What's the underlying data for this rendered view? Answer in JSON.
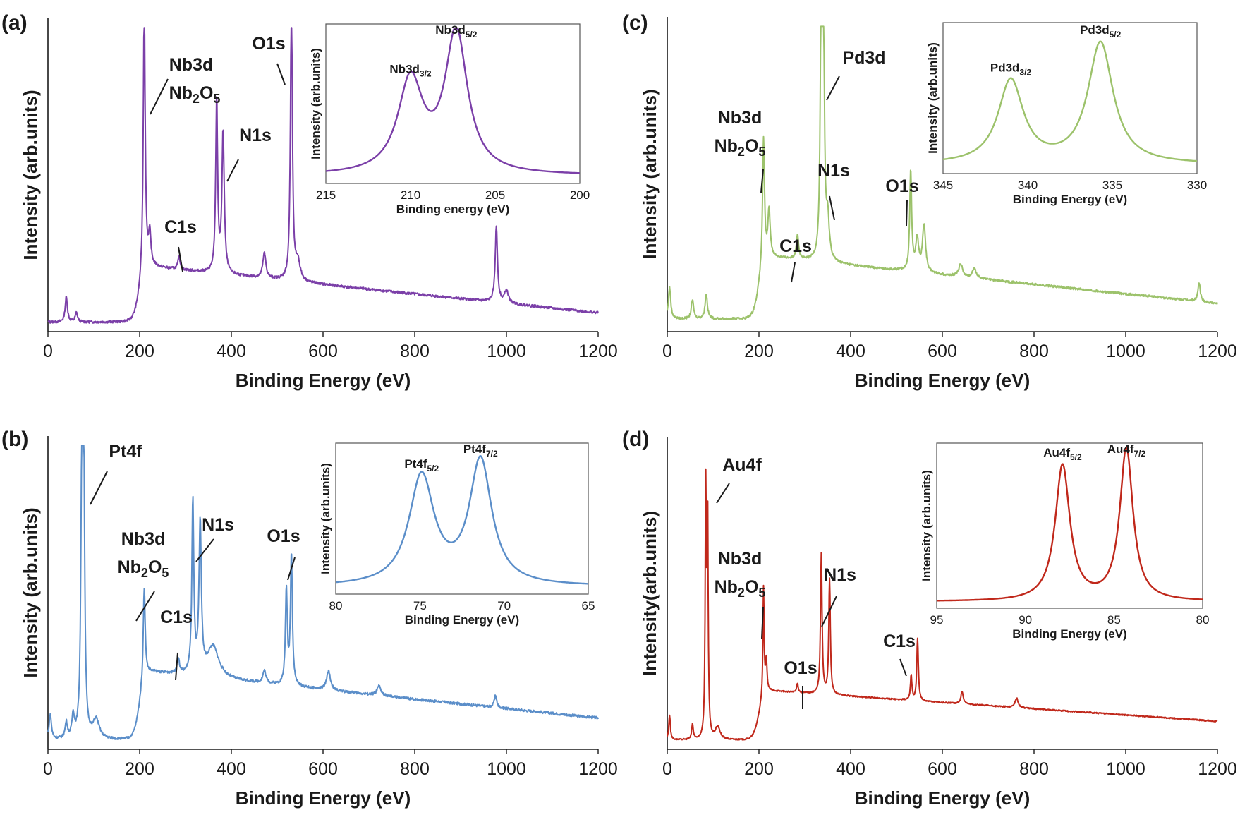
{
  "chart_data": [
    {
      "panel": "(a)",
      "type": "line",
      "color": "#7b3fa8",
      "xlabel": "Binding Energy (eV)",
      "ylabel": "Intensity (arb.units)",
      "xlim": [
        0,
        1200
      ],
      "xticks": [
        0,
        200,
        400,
        600,
        800,
        1000,
        1200
      ],
      "baseline": 0.03,
      "background": 0.18,
      "slope": 0.00015,
      "noise": 0.008,
      "peaks": [
        [
          40,
          0.08,
          3
        ],
        [
          62,
          0.03,
          3
        ],
        [
          210,
          0.85,
          2.5
        ],
        [
          222,
          0.1,
          3
        ],
        [
          286,
          0.04,
          3
        ],
        [
          368,
          0.55,
          2.5
        ],
        [
          382,
          0.45,
          3
        ],
        [
          472,
          0.08,
          4
        ],
        [
          531,
          0.9,
          2.5
        ],
        [
          545,
          0.06,
          6
        ],
        [
          978,
          0.24,
          3
        ],
        [
          1000,
          0.04,
          5
        ]
      ],
      "annotations": [
        {
          "text": "Nb3d"
        },
        {
          "text": "Nb₂O₅"
        },
        {
          "text": "O1s"
        },
        {
          "text": "N1s"
        },
        {
          "text": "C1s"
        }
      ],
      "inset": {
        "xlabel": "Binding energy (eV)",
        "ylabel": "Intensity (arb.units)",
        "xlim": [
          215,
          200
        ],
        "xticks": [
          215,
          210,
          205,
          200
        ],
        "baseline": 0.05,
        "peaks": [
          [
            210.0,
            0.58,
            0.9
          ],
          [
            207.3,
            0.88,
            0.8
          ]
        ],
        "labels": [
          {
            "main": "Nb3d",
            "sub": "3/2"
          },
          {
            "main": "Nb3d",
            "sub": "5/2"
          }
        ]
      }
    },
    {
      "panel": "(b)",
      "type": "line",
      "color": "#5b8ec9",
      "xlabel": "Binding Energy (eV)",
      "ylabel": "Intensity (arb.units)",
      "xlim": [
        0,
        1200
      ],
      "xticks": [
        0,
        200,
        400,
        600,
        800,
        1000,
        1200
      ],
      "baseline": 0.03,
      "background": 0.22,
      "slope": 0.00015,
      "noise": 0.008,
      "peaks": [
        [
          5,
          0.08,
          3
        ],
        [
          40,
          0.05,
          3
        ],
        [
          55,
          0.07,
          3
        ],
        [
          74,
          0.85,
          2.5
        ],
        [
          78,
          0.8,
          2.5
        ],
        [
          105,
          0.06,
          8
        ],
        [
          210,
          0.3,
          2.5
        ],
        [
          284,
          0.05,
          3
        ],
        [
          316,
          0.55,
          2.5
        ],
        [
          332,
          0.48,
          3
        ],
        [
          360,
          0.1,
          15
        ],
        [
          472,
          0.04,
          4
        ],
        [
          520,
          0.3,
          2.5
        ],
        [
          531,
          0.42,
          2.5
        ],
        [
          612,
          0.06,
          5
        ],
        [
          722,
          0.03,
          5
        ],
        [
          976,
          0.04,
          3
        ]
      ],
      "annotations": [
        {
          "text": "Pt4f"
        },
        {
          "text": "Nb3d"
        },
        {
          "text": "Nb₂O₅"
        },
        {
          "text": "N1s"
        },
        {
          "text": "O1s"
        },
        {
          "text": "C1s"
        }
      ],
      "inset": {
        "xlabel": "Binding Energy (eV)",
        "ylabel": "Intensity  (arb.units)",
        "xlim": [
          80,
          65
        ],
        "xticks": [
          80,
          75,
          70,
          65
        ],
        "baseline": 0.05,
        "peaks": [
          [
            74.9,
            0.72,
            0.9
          ],
          [
            71.4,
            0.82,
            0.8
          ]
        ],
        "labels": [
          {
            "main": "Pt4f",
            "sub": "5/2"
          },
          {
            "main": "Pt4f",
            "sub": "7/2"
          }
        ]
      }
    },
    {
      "panel": "(c)",
      "type": "line",
      "color": "#9cc26b",
      "xlabel": "Binding Energy (eV)",
      "ylabel": "Intensity (arb.units)",
      "xlim": [
        0,
        1200
      ],
      "xticks": [
        0,
        200,
        400,
        600,
        800,
        1000,
        1200
      ],
      "baseline": 0.04,
      "background": 0.2,
      "slope": 0.00015,
      "noise": 0.007,
      "peaks": [
        [
          5,
          0.1,
          3
        ],
        [
          55,
          0.06,
          3
        ],
        [
          85,
          0.08,
          3
        ],
        [
          210,
          0.4,
          2.5
        ],
        [
          222,
          0.15,
          3
        ],
        [
          284,
          0.08,
          3
        ],
        [
          336,
          0.88,
          2.5
        ],
        [
          341,
          0.6,
          2.5
        ],
        [
          350,
          0.12,
          4
        ],
        [
          531,
          0.32,
          2.5
        ],
        [
          545,
          0.1,
          4
        ],
        [
          560,
          0.15,
          4
        ],
        [
          640,
          0.04,
          5
        ],
        [
          670,
          0.03,
          5
        ],
        [
          1160,
          0.06,
          3
        ]
      ],
      "annotations": [
        {
          "text": "Pd3d"
        },
        {
          "text": "Nb3d"
        },
        {
          "text": "Nb₂O₅"
        },
        {
          "text": "N1s"
        },
        {
          "text": "O1s"
        },
        {
          "text": "C1s"
        }
      ],
      "inset": {
        "xlabel": "Binding Energy (eV)",
        "ylabel": "Intensity (arb.units)",
        "xlim": [
          345,
          330
        ],
        "xticks": [
          345,
          340,
          335,
          330
        ],
        "baseline": 0.06,
        "peaks": [
          [
            341.0,
            0.55,
            0.9
          ],
          [
            335.7,
            0.8,
            0.9
          ]
        ],
        "labels": [
          {
            "main": "Pd3d",
            "sub": "3/2"
          },
          {
            "main": "Pd3d",
            "sub": "5/2"
          }
        ]
      }
    },
    {
      "panel": "(d)",
      "type": "line",
      "color": "#c0281b",
      "xlabel": "Binding Energy (eV)",
      "ylabel": "Intensity(arb.units)",
      "xlim": [
        0,
        1200
      ],
      "xticks": [
        0,
        200,
        400,
        600,
        800,
        1000,
        1200
      ],
      "baseline": 0.03,
      "background": 0.16,
      "slope": 0.0001,
      "noise": 0.004,
      "peaks": [
        [
          5,
          0.08,
          2
        ],
        [
          55,
          0.05,
          2
        ],
        [
          84,
          0.78,
          1.5
        ],
        [
          88,
          0.7,
          1.5
        ],
        [
          110,
          0.04,
          6
        ],
        [
          210,
          0.35,
          1.5
        ],
        [
          216,
          0.1,
          2
        ],
        [
          284,
          0.03,
          2
        ],
        [
          336,
          0.45,
          2
        ],
        [
          354,
          0.37,
          2
        ],
        [
          532,
          0.08,
          2
        ],
        [
          546,
          0.2,
          2
        ],
        [
          643,
          0.04,
          3
        ],
        [
          762,
          0.03,
          4
        ]
      ],
      "annotations": [
        {
          "text": "Au4f"
        },
        {
          "text": "Nb3d"
        },
        {
          "text": "Nb₂O₅"
        },
        {
          "text": "N1s"
        },
        {
          "text": "C1s"
        },
        {
          "text": "O1s"
        }
      ],
      "inset": {
        "xlabel": "Binding Energy (eV)",
        "ylabel": "Intensity (arb.units)",
        "xlim": [
          95,
          80
        ],
        "xticks": [
          95,
          90,
          85,
          80
        ],
        "baseline": 0.04,
        "peaks": [
          [
            87.9,
            0.82,
            0.5
          ],
          [
            84.3,
            0.92,
            0.45
          ]
        ],
        "labels": [
          {
            "main": "Au4f",
            "sub": "5/2"
          },
          {
            "main": "Au4f",
            "sub": "7/2"
          }
        ]
      }
    }
  ]
}
